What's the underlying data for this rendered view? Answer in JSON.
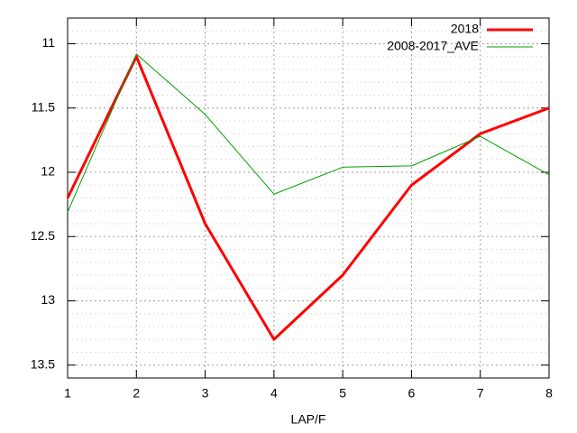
{
  "chart_data": {
    "type": "line",
    "x_label": "LAP/F",
    "x": [
      1,
      2,
      3,
      4,
      5,
      6,
      7,
      8
    ],
    "series": [
      {
        "name": "2018",
        "color": "#ff0000",
        "line_width": 3,
        "values": [
          12.2,
          11.1,
          12.4,
          13.3,
          12.8,
          12.1,
          11.7,
          11.5
        ]
      },
      {
        "name": "2008-2017_AVE",
        "color": "#00a000",
        "line_width": 1,
        "values": [
          12.31,
          11.08,
          11.55,
          12.17,
          11.96,
          11.95,
          11.72,
          12.02
        ]
      }
    ],
    "xlim": [
      1,
      8
    ],
    "xticks": [
      1,
      2,
      3,
      4,
      5,
      6,
      7,
      8
    ],
    "ylim": [
      13.6,
      10.8
    ],
    "yticks": [
      11,
      11.5,
      12,
      12.5,
      13,
      13.5
    ],
    "yminorticks": [
      10.8,
      10.9,
      11.1,
      11.2,
      11.3,
      11.4,
      11.6,
      11.7,
      11.8,
      11.9,
      12.1,
      12.2,
      12.3,
      12.4,
      12.6,
      12.7,
      12.8,
      12.9,
      13.1,
      13.2,
      13.3,
      13.4,
      13.6
    ],
    "grid": true,
    "legend": "top-right"
  }
}
